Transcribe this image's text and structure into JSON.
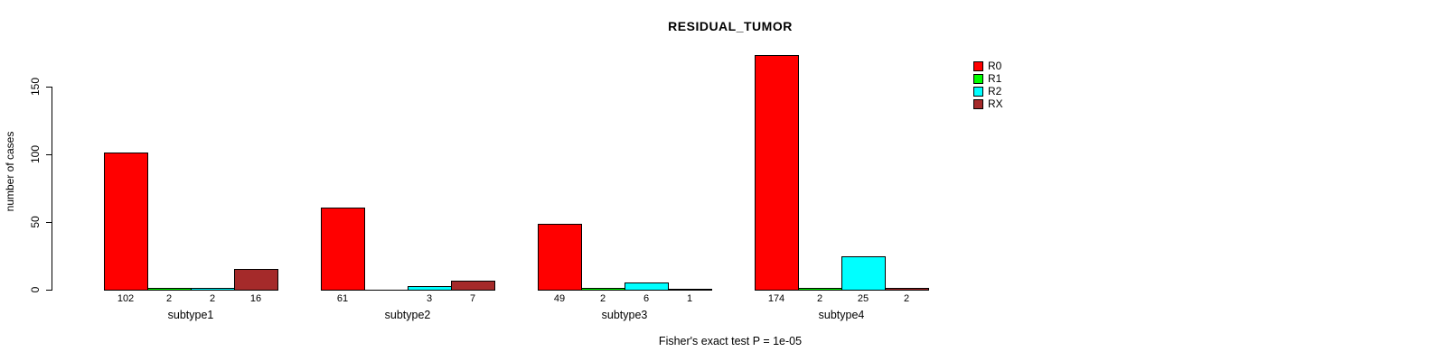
{
  "chart_data": {
    "type": "bar",
    "title": "RESIDUAL_TUMOR",
    "xlabel": "",
    "ylabel": "number of cases",
    "yticks": [
      "0",
      "50",
      "100",
      "150"
    ],
    "ylim": [
      0,
      175
    ],
    "grid": false,
    "legend_position": "right-inside",
    "categories": [
      "subtype1",
      "subtype2",
      "subtype3",
      "subtype4"
    ],
    "series": [
      {
        "name": "R0",
        "color": "#ff0000",
        "values": [
          102,
          61,
          49,
          174
        ]
      },
      {
        "name": "R1",
        "color": "#00ff00",
        "values": [
          2,
          0,
          2,
          2
        ]
      },
      {
        "name": "R2",
        "color": "#00ffff",
        "values": [
          2,
          3,
          6,
          25
        ]
      },
      {
        "name": "RX",
        "color": "#a52a2a",
        "values": [
          16,
          7,
          1,
          2
        ]
      }
    ],
    "bar_labels": [
      [
        "102",
        "2",
        "2",
        "16"
      ],
      [
        "61",
        "",
        "3",
        "7"
      ],
      [
        "49",
        "2",
        "6",
        "1"
      ],
      [
        "174",
        "2",
        "25",
        "2"
      ]
    ],
    "annotation": "Fisher's exact test P = 1e-05"
  }
}
